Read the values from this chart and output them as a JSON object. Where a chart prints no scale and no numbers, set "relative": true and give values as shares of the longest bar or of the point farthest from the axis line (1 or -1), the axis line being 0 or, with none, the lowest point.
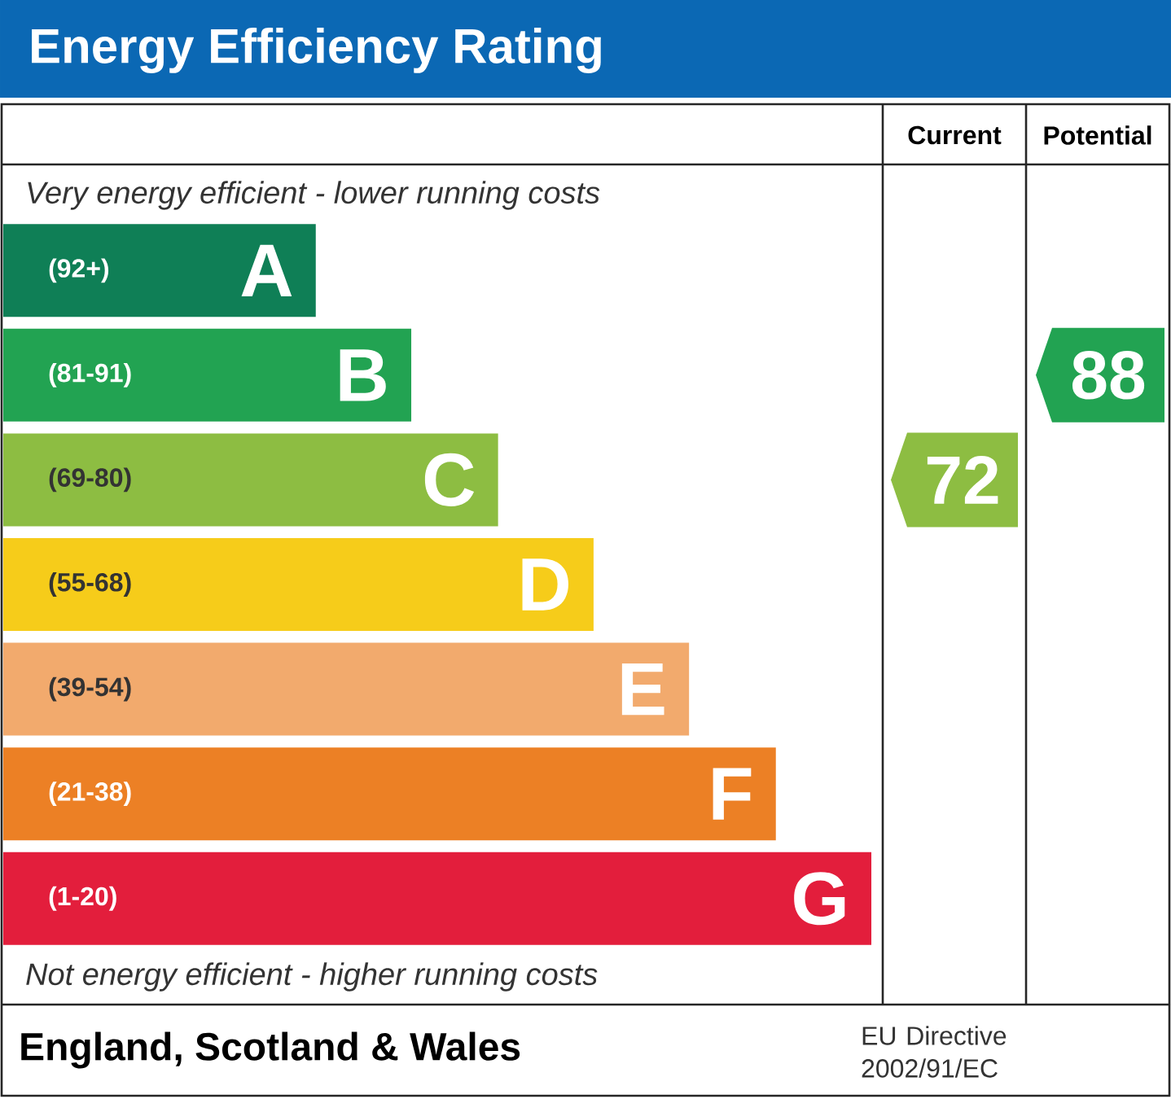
{
  "chart_data": {
    "type": "bar",
    "orientation": "horizontal",
    "relative": true,
    "title": "Energy Efficiency Rating",
    "categories": [
      "A",
      "B",
      "C",
      "D",
      "E",
      "F",
      "G"
    ],
    "values": [
      0.36,
      0.47,
      0.57,
      0.68,
      0.79,
      0.89,
      1.0
    ],
    "colors": [
      "#0f7f56",
      "#22a352",
      "#8dbd42",
      "#f6cc1a",
      "#f2aa6d",
      "#ec8025",
      "#e31e3c"
    ],
    "annotations": [
      "Current",
      "Potential",
      "Very energy efficient - lower running costs",
      "Not energy efficient - higher running costs",
      "England, Scotland & Wales",
      "EU Directive 2002/91/EC",
      "(92+)",
      "(81-91)",
      "(69-80)",
      "(55-68)",
      "(39-54)",
      "(21-38)",
      "(1-20)",
      "72",
      "88"
    ]
  }
}
